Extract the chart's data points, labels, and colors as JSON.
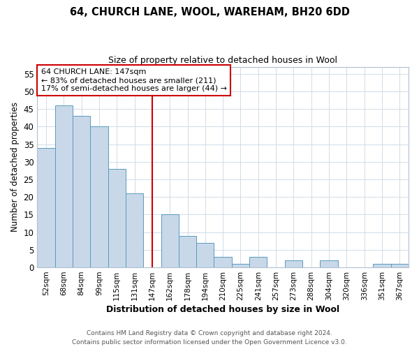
{
  "title": "64, CHURCH LANE, WOOL, WAREHAM, BH20 6DD",
  "subtitle": "Size of property relative to detached houses in Wool",
  "xlabel": "Distribution of detached houses by size in Wool",
  "ylabel": "Number of detached properties",
  "bar_labels": [
    "52sqm",
    "68sqm",
    "84sqm",
    "99sqm",
    "115sqm",
    "131sqm",
    "147sqm",
    "162sqm",
    "178sqm",
    "194sqm",
    "210sqm",
    "225sqm",
    "241sqm",
    "257sqm",
    "273sqm",
    "288sqm",
    "304sqm",
    "320sqm",
    "336sqm",
    "351sqm",
    "367sqm"
  ],
  "bar_values": [
    34,
    46,
    43,
    40,
    28,
    21,
    0,
    15,
    9,
    7,
    3,
    1,
    3,
    0,
    2,
    0,
    2,
    0,
    0,
    1,
    1
  ],
  "bar_color": "#c8d8e8",
  "bar_edge_color": "#5a9abf",
  "marker_index": 6,
  "marker_line_color": "#cc0000",
  "annotation_title": "64 CHURCH LANE: 147sqm",
  "annotation_line1": "← 83% of detached houses are smaller (211)",
  "annotation_line2": "17% of semi-detached houses are larger (44) →",
  "annotation_box_color": "#cc0000",
  "ylim": [
    0,
    57
  ],
  "yticks": [
    0,
    5,
    10,
    15,
    20,
    25,
    30,
    35,
    40,
    45,
    50,
    55
  ],
  "footer1": "Contains HM Land Registry data © Crown copyright and database right 2024.",
  "footer2": "Contains public sector information licensed under the Open Government Licence v3.0.",
  "bg_color": "#ffffff",
  "plot_bg_color": "#ffffff",
  "grid_color": "#d0dce8",
  "spine_color": "#b0c0d0"
}
